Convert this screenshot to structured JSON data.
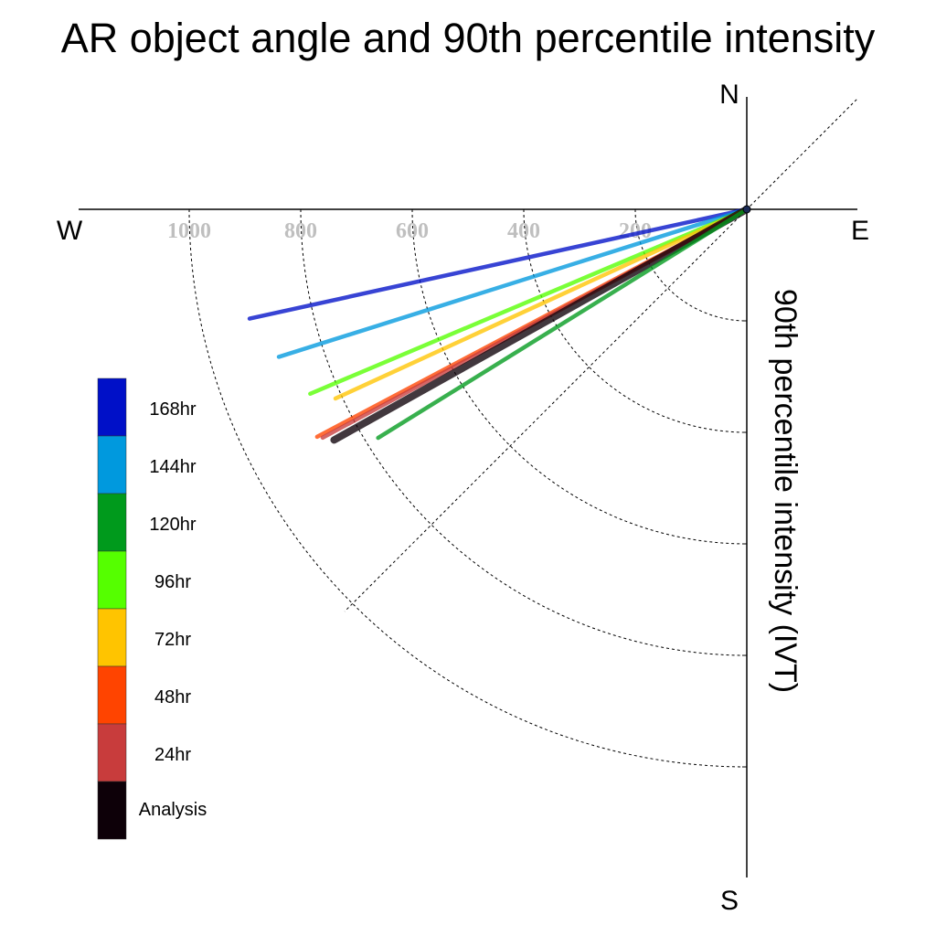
{
  "chart_data": {
    "type": "polar-vector",
    "title": "AR object angle and 90th percentile intensity",
    "radial_label": "90th percentile intensity (IVT)",
    "compass": {
      "north": "N",
      "south": "S",
      "east": "E",
      "west": "W"
    },
    "radial_ticks": [
      200,
      400,
      600,
      800,
      1000
    ],
    "radial_range": [
      0,
      1200
    ],
    "grid_angles_deg": [
      45
    ],
    "series": [
      {
        "name": "168hr",
        "color": "#0010c8",
        "angle_deg_below_west": 12.4,
        "intensity": 913
      },
      {
        "name": "144hr",
        "color": "#0099de",
        "angle_deg_below_west": 17.5,
        "intensity": 880
      },
      {
        "name": "96hr",
        "color": "#55ff00",
        "angle_deg_below_west": 22.9,
        "intensity": 850
      },
      {
        "name": "72hr",
        "color": "#ffc400",
        "angle_deg_below_west": 24.7,
        "intensity": 812
      },
      {
        "name": "48hr",
        "color": "#ff4400",
        "angle_deg_below_west": 27.9,
        "intensity": 872
      },
      {
        "name": "24hr",
        "color": "#c83c3c",
        "angle_deg_below_west": 28.3,
        "intensity": 864
      },
      {
        "name": "Analysis",
        "color": "#0d0008",
        "angle_deg_below_west": 29.2,
        "intensity": 848
      },
      {
        "name": "120hr",
        "color": "#009a1c",
        "angle_deg_below_west": 31.8,
        "intensity": 778
      }
    ],
    "legend": {
      "placement": "lower-left",
      "entries": [
        {
          "label": "168hr",
          "color": "#0010c8"
        },
        {
          "label": "144hr",
          "color": "#0099de"
        },
        {
          "label": "120hr",
          "color": "#009a1c"
        },
        {
          "label": "96hr",
          "color": "#55ff00"
        },
        {
          "label": "72hr",
          "color": "#ffc400"
        },
        {
          "label": "48hr",
          "color": "#ff4400"
        },
        {
          "label": "24hr",
          "color": "#c83c3c"
        },
        {
          "label": "Analysis",
          "color": "#0d0008"
        }
      ]
    }
  }
}
